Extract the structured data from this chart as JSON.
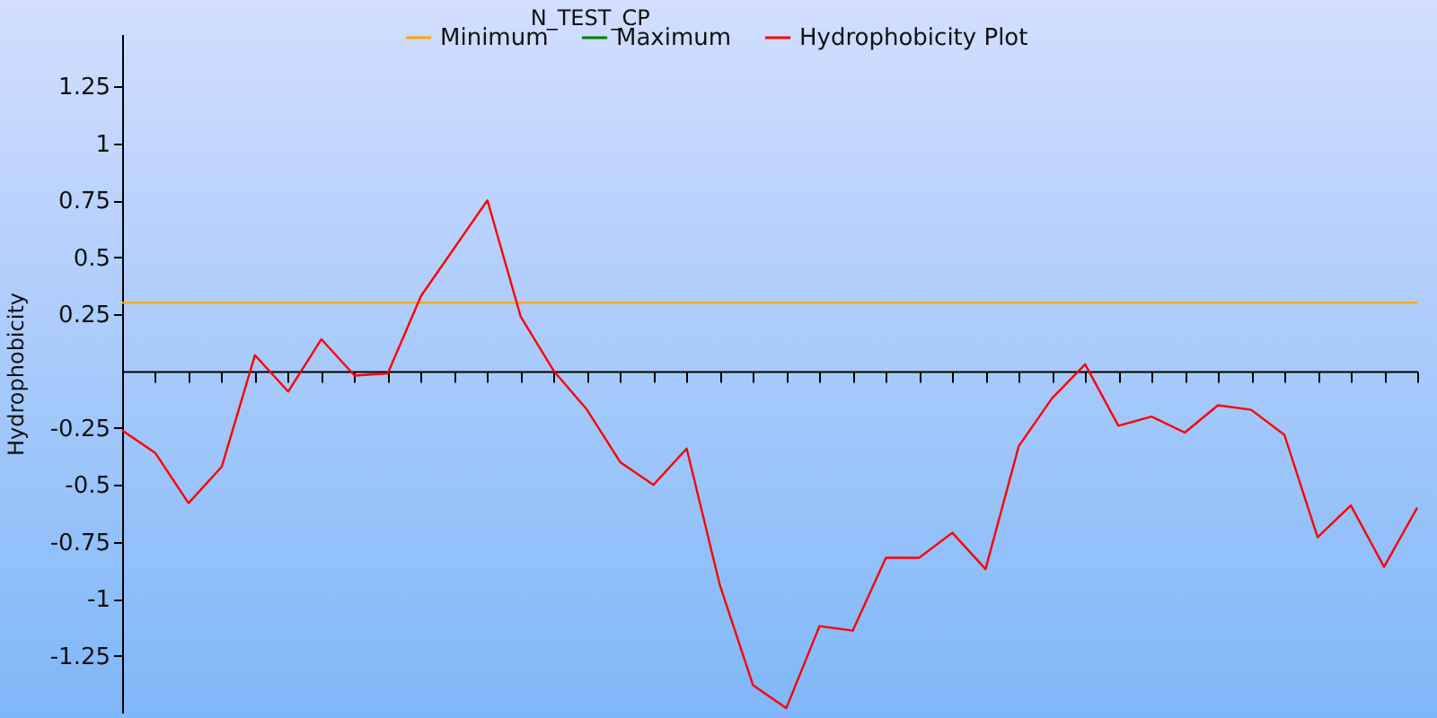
{
  "chart_data": {
    "type": "line",
    "title": "N_TEST_CP",
    "ylabel": "Hydrophobicity",
    "categories": [
      null,
      null,
      null,
      null,
      null,
      null,
      null,
      null,
      null,
      null,
      null,
      null,
      null,
      null,
      null,
      null,
      null,
      null,
      null,
      null,
      null,
      null,
      null,
      null,
      null,
      null,
      null,
      null,
      null,
      null,
      null,
      null,
      null,
      null,
      null,
      null,
      null,
      null,
      null,
      null
    ],
    "series": [
      {
        "name": "Minimum",
        "color": "#ffa500",
        "values": [
          0.3,
          0.3,
          0.3,
          0.3,
          0.3,
          0.3,
          0.3,
          0.3,
          0.3,
          0.3,
          0.3,
          0.3,
          0.3,
          0.3,
          0.3,
          0.3,
          0.3,
          0.3,
          0.3,
          0.3,
          0.3,
          0.3,
          0.3,
          0.3,
          0.3,
          0.3,
          0.3,
          0.3,
          0.3,
          0.3,
          0.3,
          0.3,
          0.3,
          0.3,
          0.3,
          0.3,
          0.3,
          0.3,
          0.3,
          0.3
        ]
      },
      {
        "name": "Maximum",
        "color": "#008000",
        "values": [
          null,
          null,
          null,
          null,
          null,
          null,
          null,
          null,
          null,
          null,
          null,
          null,
          null,
          null,
          null,
          null,
          null,
          null,
          null,
          null,
          null,
          null,
          null,
          null,
          null,
          null,
          null,
          null,
          null,
          null,
          null,
          null,
          null,
          null,
          null,
          null,
          null,
          null,
          null,
          null
        ]
      },
      {
        "name": "Hydrophobicity Plot",
        "color": "#ff0000",
        "values": [
          -0.26,
          -0.36,
          -0.58,
          -0.42,
          0.07,
          -0.09,
          0.14,
          -0.02,
          -0.01,
          0.33,
          0.54,
          0.75,
          0.24,
          0.0,
          -0.17,
          -0.4,
          -0.5,
          -0.34,
          -0.94,
          -1.38,
          -1.48,
          -1.12,
          -1.14,
          -0.82,
          -0.82,
          -0.71,
          -0.87,
          -0.33,
          -0.12,
          0.03,
          -0.24,
          -0.2,
          -0.27,
          -0.15,
          -0.17,
          -0.28,
          -0.73,
          -0.59,
          -0.86,
          -0.6
        ]
      }
    ],
    "ylim": [
      -1.5,
      1.48
    ],
    "yticks": [
      -1.25,
      -1,
      -0.75,
      -0.5,
      -0.25,
      0.25,
      0.5,
      0.75,
      1,
      1.25
    ],
    "grid": false,
    "legend": "top",
    "tick_labels": "y",
    "marker": "none",
    "line_style": "solid"
  }
}
